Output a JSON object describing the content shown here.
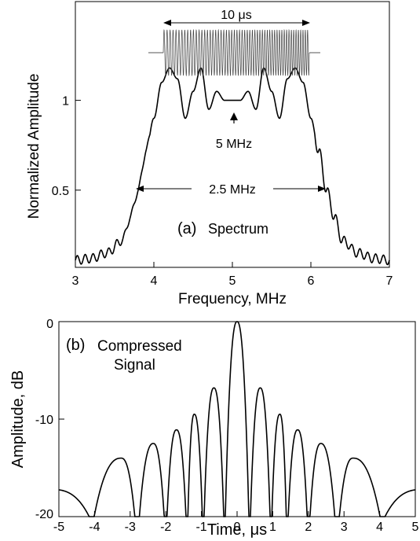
{
  "chart_data": [
    {
      "panel": "(a)",
      "label": "Spectrum",
      "type": "line",
      "xlabel": "Frequency, MHz",
      "ylabel": "Normalized Amplitude",
      "xlim": [
        3,
        7
      ],
      "ylim": [
        0.07,
        1.55
      ],
      "xticks": [
        "3",
        "4",
        "5",
        "6",
        "7"
      ],
      "yticks": [
        {
          "value": 1,
          "label": "1"
        },
        {
          "value": 0.5,
          "label": "0.5"
        }
      ],
      "grid": false,
      "center_frequency_mhz": 5,
      "bandwidth_mhz": 2.5,
      "pulse_duration_us": 10,
      "annotations": {
        "center": "5 MHz",
        "bandwidth": "2.5 MHz",
        "duration": "10 μs"
      },
      "series": [
        {
          "x": [
            3.0,
            3.2,
            3.4,
            3.6,
            3.7,
            3.8,
            3.9,
            4.0,
            4.1,
            4.2,
            4.3,
            4.4,
            4.5,
            4.6,
            4.7,
            4.8,
            4.9,
            5.0,
            5.1,
            5.2,
            5.3,
            5.4,
            5.5,
            5.6,
            5.7,
            5.8,
            5.9,
            6.0,
            6.1,
            6.2,
            6.3,
            6.4,
            6.6,
            6.8,
            7.0
          ],
          "values": [
            0.11,
            0.12,
            0.15,
            0.22,
            0.35,
            0.5,
            0.72,
            0.9,
            1.1,
            1.18,
            1.12,
            0.9,
            1.05,
            1.18,
            0.95,
            1.05,
            1.0,
            1.0,
            1.0,
            1.05,
            0.95,
            1.18,
            1.05,
            0.9,
            1.12,
            1.18,
            1.1,
            0.9,
            0.72,
            0.5,
            0.35,
            0.22,
            0.15,
            0.12,
            0.11
          ]
        }
      ]
    },
    {
      "panel": "(b)",
      "label": "Compressed Signal",
      "type": "line",
      "xlabel": "Time, μs",
      "ylabel": "Amplitude, dB",
      "xlim": [
        -5,
        5
      ],
      "ylim": [
        -20,
        0
      ],
      "xticks": [
        "-5",
        "-4",
        "-3",
        "-2",
        "-1",
        "0",
        "1",
        "2",
        "3",
        "4",
        "5"
      ],
      "yticks": [
        {
          "value": 0,
          "label": "0"
        },
        {
          "value": -10,
          "label": "-10"
        },
        {
          "value": -20,
          "label": "-20"
        }
      ],
      "grid": false,
      "mainlobe_db": 0,
      "sidelobes": [
        {
          "t": -3.25,
          "db": -14.0
        },
        {
          "t": -2.35,
          "db": -12.5
        },
        {
          "t": -1.7,
          "db": -11.1
        },
        {
          "t": -1.2,
          "db": -9.5
        },
        {
          "t": -0.65,
          "db": -6.8
        },
        {
          "t": 0.65,
          "db": -6.8
        },
        {
          "t": 1.2,
          "db": -9.5
        },
        {
          "t": 1.7,
          "db": -11.1
        },
        {
          "t": 2.35,
          "db": -12.5
        },
        {
          "t": 3.25,
          "db": -14.0
        }
      ],
      "nulls": [
        -4.15,
        -2.8,
        -2.0,
        -1.4,
        -0.95,
        -0.35,
        0.35,
        0.95,
        1.4,
        2.0,
        2.8,
        4.15
      ]
    }
  ],
  "text": {
    "a_label": "(a)",
    "a_title": "Spectrum",
    "b_label": "(b)",
    "b_title_1": "Compressed",
    "b_title_2": "Signal",
    "a_xlabel": "Frequency, MHz",
    "a_ylabel": "Normalized Amplitude",
    "b_xlabel": "Time, μs",
    "b_ylabel": "Amplitude, dB",
    "center_annot": "5 MHz",
    "bw_annot": "2.5 MHz",
    "dur_annot": "10 μs"
  }
}
